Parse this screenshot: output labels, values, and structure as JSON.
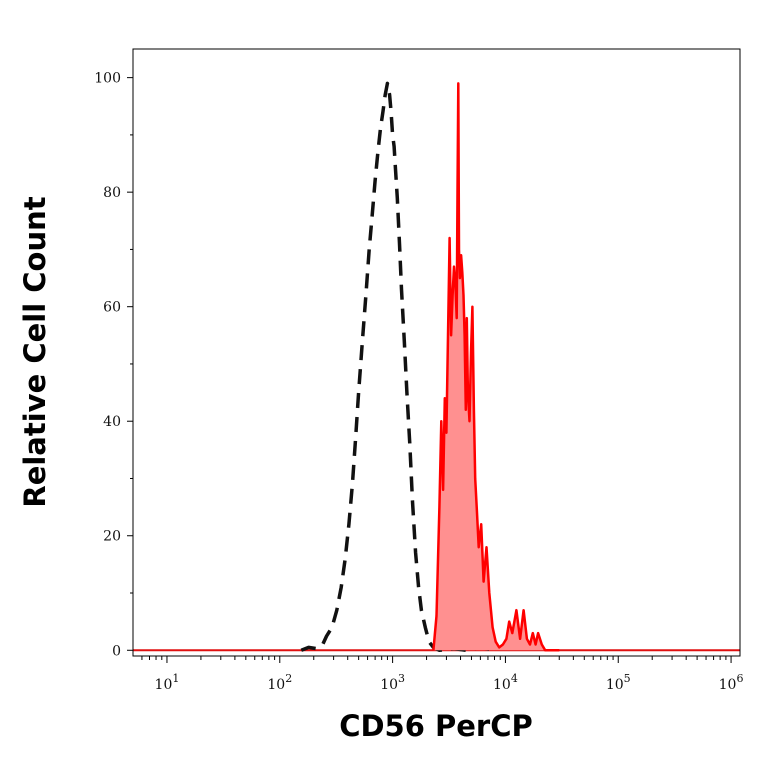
{
  "chart_data": {
    "type": "area",
    "title": "",
    "xlabel": "CD56 PerCP",
    "ylabel": "Relative Cell Count",
    "xscale": "log",
    "xlim": [
      5,
      1200000
    ],
    "ylim": [
      -1,
      105
    ],
    "x_ticks": [
      {
        "value": 10,
        "base": "10",
        "exp": "1"
      },
      {
        "value": 100,
        "base": "10",
        "exp": "2"
      },
      {
        "value": 1000,
        "base": "10",
        "exp": "3"
      },
      {
        "value": 10000,
        "base": "10",
        "exp": "4"
      },
      {
        "value": 100000,
        "base": "10",
        "exp": "5"
      },
      {
        "value": 1000000,
        "base": "10",
        "exp": "6"
      }
    ],
    "y_ticks": [
      {
        "value": 0,
        "label": "0"
      },
      {
        "value": 20,
        "label": "20"
      },
      {
        "value": 40,
        "label": "40"
      },
      {
        "value": 60,
        "label": "60"
      },
      {
        "value": 80,
        "label": "80"
      },
      {
        "value": 100,
        "label": "100"
      }
    ],
    "grid": false,
    "legend": "none",
    "series": [
      {
        "style": "dashed-outline",
        "color": "#111111",
        "points": [
          [
            155,
            0
          ],
          [
            180,
            0.5
          ],
          [
            210,
            0.3
          ],
          [
            240,
            1
          ],
          [
            260,
            2.5
          ],
          [
            290,
            4
          ],
          [
            320,
            7
          ],
          [
            350,
            11
          ],
          [
            380,
            16
          ],
          [
            410,
            22
          ],
          [
            440,
            29
          ],
          [
            470,
            37
          ],
          [
            500,
            45
          ],
          [
            540,
            54
          ],
          [
            580,
            62
          ],
          [
            620,
            70
          ],
          [
            660,
            76
          ],
          [
            700,
            82
          ],
          [
            740,
            87
          ],
          [
            780,
            91
          ],
          [
            820,
            94
          ],
          [
            860,
            97
          ],
          [
            900,
            99
          ],
          [
            940,
            97
          ],
          [
            970,
            94
          ],
          [
            1000,
            90
          ],
          [
            1030,
            88
          ],
          [
            1060,
            84
          ],
          [
            1100,
            79
          ],
          [
            1150,
            71
          ],
          [
            1200,
            63
          ],
          [
            1270,
            54
          ],
          [
            1340,
            45
          ],
          [
            1420,
            36
          ],
          [
            1500,
            26
          ],
          [
            1600,
            17
          ],
          [
            1700,
            11
          ],
          [
            1800,
            7
          ],
          [
            1950,
            4
          ],
          [
            2100,
            1.5
          ],
          [
            2300,
            0.5
          ],
          [
            2600,
            0
          ],
          [
            3500,
            0.3
          ],
          [
            4500,
            0
          ],
          [
            6000,
            0.5
          ],
          [
            8000,
            0
          ]
        ]
      },
      {
        "style": "filled",
        "color": "#ff0000",
        "fill": "#ff9090",
        "points": [
          [
            2300,
            0
          ],
          [
            2450,
            6
          ],
          [
            2600,
            25
          ],
          [
            2700,
            40
          ],
          [
            2800,
            28
          ],
          [
            2900,
            44
          ],
          [
            3000,
            38
          ],
          [
            3100,
            55
          ],
          [
            3200,
            72
          ],
          [
            3300,
            55
          ],
          [
            3400,
            62
          ],
          [
            3500,
            67
          ],
          [
            3600,
            64
          ],
          [
            3700,
            58
          ],
          [
            3760,
            80
          ],
          [
            3820,
            99
          ],
          [
            3880,
            70
          ],
          [
            3950,
            65
          ],
          [
            4050,
            69
          ],
          [
            4150,
            66
          ],
          [
            4250,
            62
          ],
          [
            4350,
            55
          ],
          [
            4450,
            42
          ],
          [
            4550,
            58
          ],
          [
            4650,
            45
          ],
          [
            4800,
            40
          ],
          [
            4950,
            52
          ],
          [
            5100,
            60
          ],
          [
            5250,
            42
          ],
          [
            5400,
            30
          ],
          [
            5600,
            24
          ],
          [
            5800,
            18
          ],
          [
            6100,
            22
          ],
          [
            6400,
            12
          ],
          [
            6800,
            18
          ],
          [
            7200,
            10
          ],
          [
            7700,
            4
          ],
          [
            8200,
            1.5
          ],
          [
            8800,
            0.5
          ],
          [
            9500,
            1
          ],
          [
            10200,
            2
          ],
          [
            10800,
            5
          ],
          [
            11500,
            3
          ],
          [
            12500,
            7
          ],
          [
            13500,
            2
          ],
          [
            14500,
            7
          ],
          [
            15500,
            2
          ],
          [
            16500,
            1
          ],
          [
            17500,
            3
          ],
          [
            18500,
            1
          ],
          [
            19500,
            3
          ],
          [
            21000,
            1
          ],
          [
            22500,
            0
          ],
          [
            30000,
            0
          ]
        ]
      }
    ]
  }
}
